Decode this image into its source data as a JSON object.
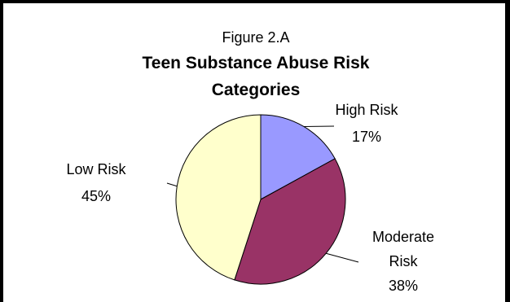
{
  "chart_data": {
    "type": "pie",
    "figure_label": "Figure 2.A",
    "title_lines": [
      "Teen Substance Abuse Risk",
      "Categories"
    ],
    "slices": [
      {
        "label_lines": [
          "High Risk"
        ],
        "percent_label": "17%",
        "value": 17,
        "color": "#9999ff"
      },
      {
        "label_lines": [
          "Moderate",
          "Risk"
        ],
        "percent_label": "38%",
        "value": 38,
        "color": "#993366"
      },
      {
        "label_lines": [
          "Low Risk"
        ],
        "percent_label": "45%",
        "value": 45,
        "color": "#ffffcc"
      }
    ],
    "start_angle": "12 o'clock",
    "direction": "clockwise",
    "legend": "none"
  },
  "colors": {
    "background": "#ffffff",
    "border": "#000000",
    "slice_outline": "#000000"
  }
}
